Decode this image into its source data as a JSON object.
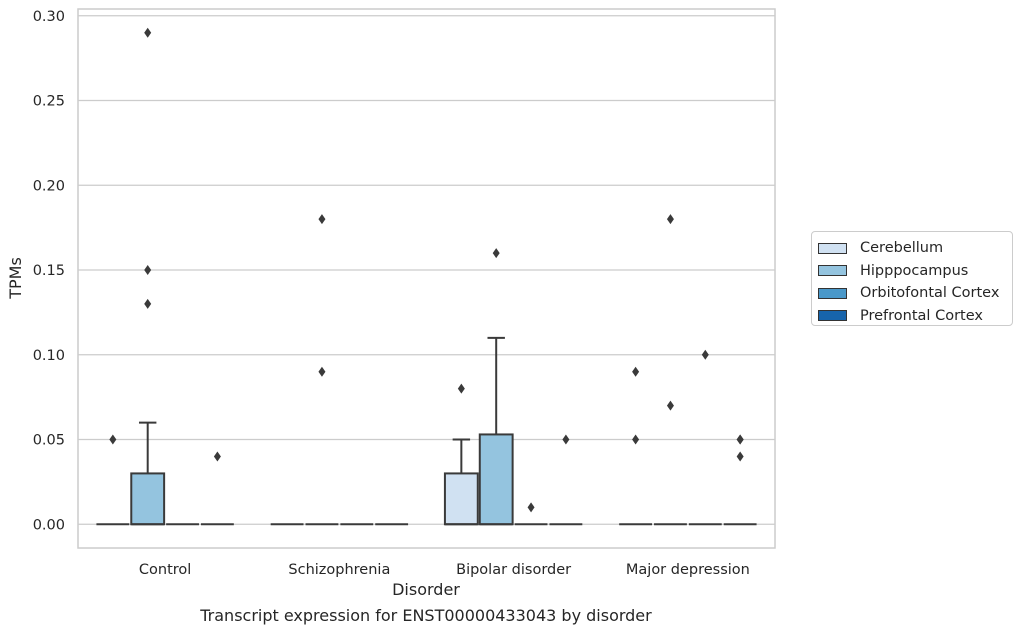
{
  "chart_data": {
    "type": "box",
    "caption": "Transcript expression for ENST00000433043 by disorder",
    "xlabel": "Disorder",
    "ylabel": "TPMs",
    "categories": [
      "Control",
      "Schizophrenia",
      "Bipolar disorder",
      "Major depression"
    ],
    "ylim": [
      -0.014,
      0.304
    ],
    "yticks": [
      0.0,
      0.05,
      0.1,
      0.15,
      0.2,
      0.25,
      0.3
    ],
    "ytick_labels": [
      "0.00",
      "0.05",
      "0.10",
      "0.15",
      "0.20",
      "0.25",
      "0.30"
    ],
    "grid": true,
    "legend_position": "right",
    "series": [
      {
        "name": "Cerebellum",
        "color": "#d0e1f2",
        "boxes": [
          {
            "q1": 0,
            "median": 0,
            "q3": 0,
            "whisker_low": 0,
            "whisker_high": 0,
            "outliers": [
              0.05
            ]
          },
          {
            "q1": 0,
            "median": 0,
            "q3": 0,
            "whisker_low": 0,
            "whisker_high": 0,
            "outliers": []
          },
          {
            "q1": 0,
            "median": 0,
            "q3": 0.03,
            "whisker_low": 0,
            "whisker_high": 0.05,
            "outliers": [
              0.08
            ]
          },
          {
            "q1": 0,
            "median": 0,
            "q3": 0,
            "whisker_low": 0,
            "whisker_high": 0,
            "outliers": [
              0.05,
              0.09
            ]
          }
        ]
      },
      {
        "name": "Hipppocampus",
        "color": "#94c4df",
        "boxes": [
          {
            "q1": 0,
            "median": 0,
            "q3": 0.03,
            "whisker_low": 0,
            "whisker_high": 0.06,
            "outliers": [
              0.13,
              0.15,
              0.29
            ]
          },
          {
            "q1": 0,
            "median": 0,
            "q3": 0,
            "whisker_low": 0,
            "whisker_high": 0,
            "outliers": [
              0.09,
              0.18
            ]
          },
          {
            "q1": 0,
            "median": 0,
            "q3": 0.053,
            "whisker_low": 0,
            "whisker_high": 0.11,
            "outliers": [
              0.16
            ]
          },
          {
            "q1": 0,
            "median": 0,
            "q3": 0,
            "whisker_low": 0,
            "whisker_high": 0,
            "outliers": [
              0.07,
              0.18
            ]
          }
        ]
      },
      {
        "name": "Orbitofontal Cortex",
        "color": "#4a98c9",
        "boxes": [
          {
            "q1": 0,
            "median": 0,
            "q3": 0,
            "whisker_low": 0,
            "whisker_high": 0,
            "outliers": []
          },
          {
            "q1": 0,
            "median": 0,
            "q3": 0,
            "whisker_low": 0,
            "whisker_high": 0,
            "outliers": []
          },
          {
            "q1": 0,
            "median": 0,
            "q3": 0,
            "whisker_low": 0,
            "whisker_high": 0,
            "outliers": [
              0.01
            ]
          },
          {
            "q1": 0,
            "median": 0,
            "q3": 0,
            "whisker_low": 0,
            "whisker_high": 0,
            "outliers": [
              0.1
            ]
          }
        ]
      },
      {
        "name": "Prefrontal Cortex",
        "color": "#1764ab",
        "boxes": [
          {
            "q1": 0,
            "median": 0,
            "q3": 0,
            "whisker_low": 0,
            "whisker_high": 0,
            "outliers": [
              0.04
            ]
          },
          {
            "q1": 0,
            "median": 0,
            "q3": 0,
            "whisker_low": 0,
            "whisker_high": 0,
            "outliers": []
          },
          {
            "q1": 0,
            "median": 0,
            "q3": 0,
            "whisker_low": 0,
            "whisker_high": 0,
            "outliers": [
              0.05
            ]
          },
          {
            "q1": 0,
            "median": 0,
            "q3": 0,
            "whisker_low": 0,
            "whisker_high": 0,
            "outliers": [
              0.04,
              0.05,
              0.05
            ]
          }
        ]
      }
    ]
  }
}
